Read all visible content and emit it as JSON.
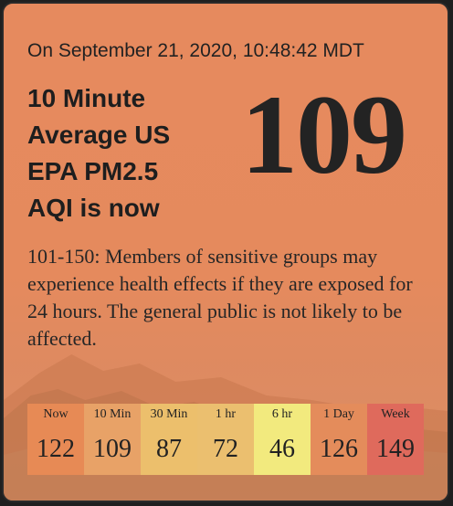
{
  "widget": {
    "timestamp": "On September 21, 2020, 10:48:42 MDT",
    "headline_lines": [
      "10 Minute",
      "Average US",
      "EPA PM2.5",
      "AQI is now"
    ],
    "aqi_value": "109",
    "description": "101-150: Members of sensitive groups may experience health effects if they are exposed for 24 hours. The general public is not likely to be affected."
  },
  "history": [
    {
      "label": "Now",
      "value": "122",
      "color": "#e78a55"
    },
    {
      "label": "10 Min",
      "value": "109",
      "color": "#e8a267"
    },
    {
      "label": "30 Min",
      "value": "87",
      "color": "#ecbf6c"
    },
    {
      "label": "1 hr",
      "value": "72",
      "color": "#ebbf6f"
    },
    {
      "label": "6 hr",
      "value": "46",
      "color": "#f2ea7e"
    },
    {
      "label": "1 Day",
      "value": "126",
      "color": "#e48c5b"
    },
    {
      "label": "Week",
      "value": "149",
      "color": "#df6a5c"
    }
  ]
}
